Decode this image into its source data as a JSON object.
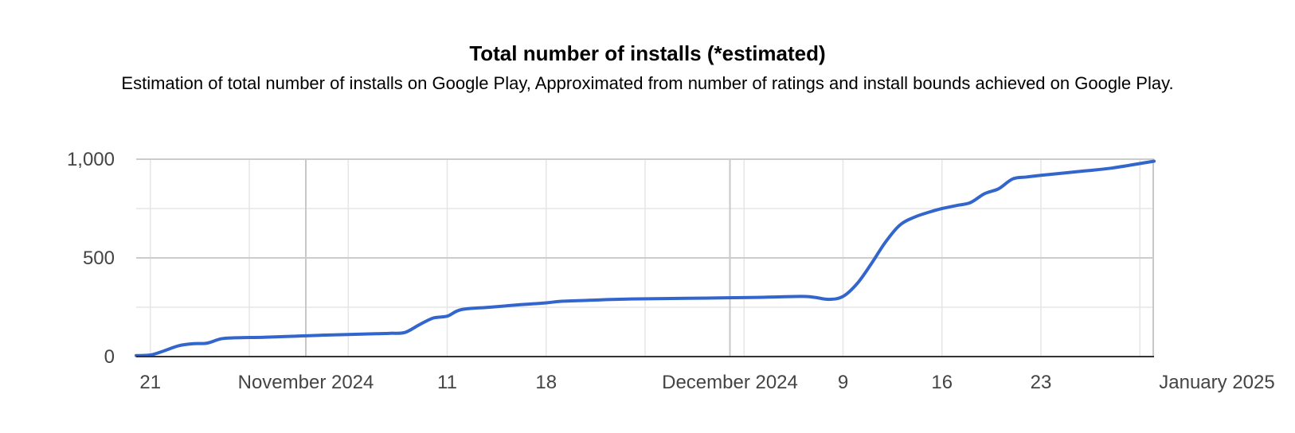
{
  "chart_data": {
    "type": "line",
    "title": "Total number of installs (*estimated)",
    "subtitle": "Estimation of total number of installs on Google Play, Approximated from number of ratings and install bounds achieved on Google Play.",
    "xlabel": "",
    "ylabel": "",
    "x_range": [
      "2024-10-20",
      "2024-12-31"
    ],
    "ylim": [
      0,
      1000
    ],
    "grid": true,
    "legend": "none",
    "line_color": "#3366cc",
    "y_ticks": [
      {
        "value": 0,
        "label": "0"
      },
      {
        "value": 500,
        "label": "500"
      },
      {
        "value": 1000,
        "label": "1,000"
      }
    ],
    "x_ticks": [
      {
        "date": "2024-10-21",
        "label": "21"
      },
      {
        "date": "2024-11-01",
        "label": "November 2024"
      },
      {
        "date": "2024-11-11",
        "label": "11"
      },
      {
        "date": "2024-11-18",
        "label": "18"
      },
      {
        "date": "2024-12-01",
        "label": "December 2024"
      },
      {
        "date": "2024-12-09",
        "label": "9"
      },
      {
        "date": "2024-12-16",
        "label": "16"
      },
      {
        "date": "2024-12-23",
        "label": "23"
      },
      {
        "date": "2025-01-01",
        "label": "January 2025"
      }
    ],
    "series": [
      {
        "name": "",
        "points": [
          [
            "2024-10-20",
            5
          ],
          [
            "2024-10-21",
            8
          ],
          [
            "2024-10-22",
            30
          ],
          [
            "2024-10-23",
            55
          ],
          [
            "2024-10-24",
            65
          ],
          [
            "2024-10-25",
            68
          ],
          [
            "2024-10-26",
            90
          ],
          [
            "2024-10-27",
            95
          ],
          [
            "2024-10-29",
            98
          ],
          [
            "2024-10-31",
            103
          ],
          [
            "2024-11-02",
            108
          ],
          [
            "2024-11-04",
            112
          ],
          [
            "2024-11-06",
            116
          ],
          [
            "2024-11-07",
            118
          ],
          [
            "2024-11-08",
            122
          ],
          [
            "2024-11-09",
            160
          ],
          [
            "2024-11-10",
            195
          ],
          [
            "2024-11-11",
            205
          ],
          [
            "2024-11-12",
            238
          ],
          [
            "2024-11-14",
            250
          ],
          [
            "2024-11-16",
            262
          ],
          [
            "2024-11-18",
            272
          ],
          [
            "2024-11-19",
            280
          ],
          [
            "2024-11-21",
            285
          ],
          [
            "2024-11-22",
            288
          ],
          [
            "2024-11-24",
            292
          ],
          [
            "2024-11-28",
            295
          ],
          [
            "2024-12-03",
            300
          ],
          [
            "2024-12-06",
            305
          ],
          [
            "2024-12-07",
            300
          ],
          [
            "2024-12-08",
            290
          ],
          [
            "2024-12-09",
            305
          ],
          [
            "2024-12-10",
            370
          ],
          [
            "2024-12-11",
            470
          ],
          [
            "2024-12-12",
            580
          ],
          [
            "2024-12-13",
            665
          ],
          [
            "2024-12-14",
            705
          ],
          [
            "2024-12-15",
            730
          ],
          [
            "2024-12-16",
            750
          ],
          [
            "2024-12-17",
            765
          ],
          [
            "2024-12-18",
            780
          ],
          [
            "2024-12-19",
            825
          ],
          [
            "2024-12-20",
            850
          ],
          [
            "2024-12-21",
            900
          ],
          [
            "2024-12-22",
            910
          ],
          [
            "2024-12-23",
            918
          ],
          [
            "2024-12-26",
            940
          ],
          [
            "2024-12-28",
            955
          ],
          [
            "2024-12-31",
            990
          ]
        ]
      }
    ]
  }
}
